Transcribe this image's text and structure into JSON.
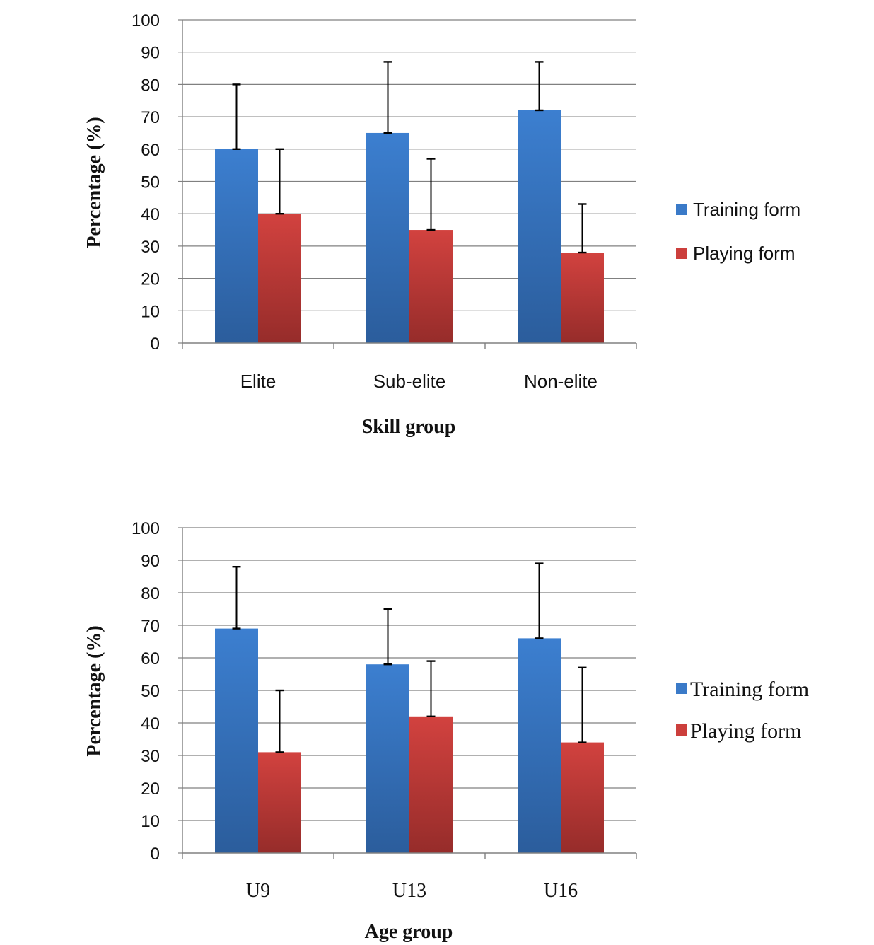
{
  "colors": {
    "training": "#3a7ac8",
    "training_dark": "#2c5f9e",
    "playing": "#cc3f3c",
    "playing_dark": "#9a2e2c",
    "grid": "#808080",
    "error_bar": "#000000"
  },
  "chart_data": [
    {
      "type": "bar",
      "title": "",
      "xlabel": "Skill group",
      "ylabel": "Percentage (%)",
      "ylim": [
        0,
        100
      ],
      "yticks": [
        "0",
        "10",
        "20",
        "30",
        "40",
        "50",
        "60",
        "70",
        "80",
        "90",
        "100"
      ],
      "grid": true,
      "legend_position": "right",
      "categories": [
        "Elite",
        "Sub-elite",
        "Non-elite"
      ],
      "series": [
        {
          "name": "Training form",
          "values": [
            60,
            65,
            72
          ],
          "error_upper": [
            80,
            87,
            87
          ]
        },
        {
          "name": "Playing form",
          "values": [
            40,
            35,
            28
          ],
          "error_upper": [
            60,
            57,
            43
          ]
        }
      ]
    },
    {
      "type": "bar",
      "title": "",
      "xlabel": "Age group",
      "ylabel": "Percentage (%)",
      "ylim": [
        0,
        100
      ],
      "yticks": [
        "0",
        "10",
        "20",
        "30",
        "40",
        "50",
        "60",
        "70",
        "80",
        "90",
        "100"
      ],
      "grid": true,
      "legend_position": "right",
      "categories": [
        "U9",
        "U13",
        "U16"
      ],
      "series": [
        {
          "name": "Training form",
          "values": [
            69,
            58,
            66
          ],
          "error_upper": [
            88,
            75,
            89
          ]
        },
        {
          "name": "Playing form",
          "values": [
            31,
            42,
            34
          ],
          "error_upper": [
            50,
            59,
            57
          ]
        }
      ]
    }
  ]
}
